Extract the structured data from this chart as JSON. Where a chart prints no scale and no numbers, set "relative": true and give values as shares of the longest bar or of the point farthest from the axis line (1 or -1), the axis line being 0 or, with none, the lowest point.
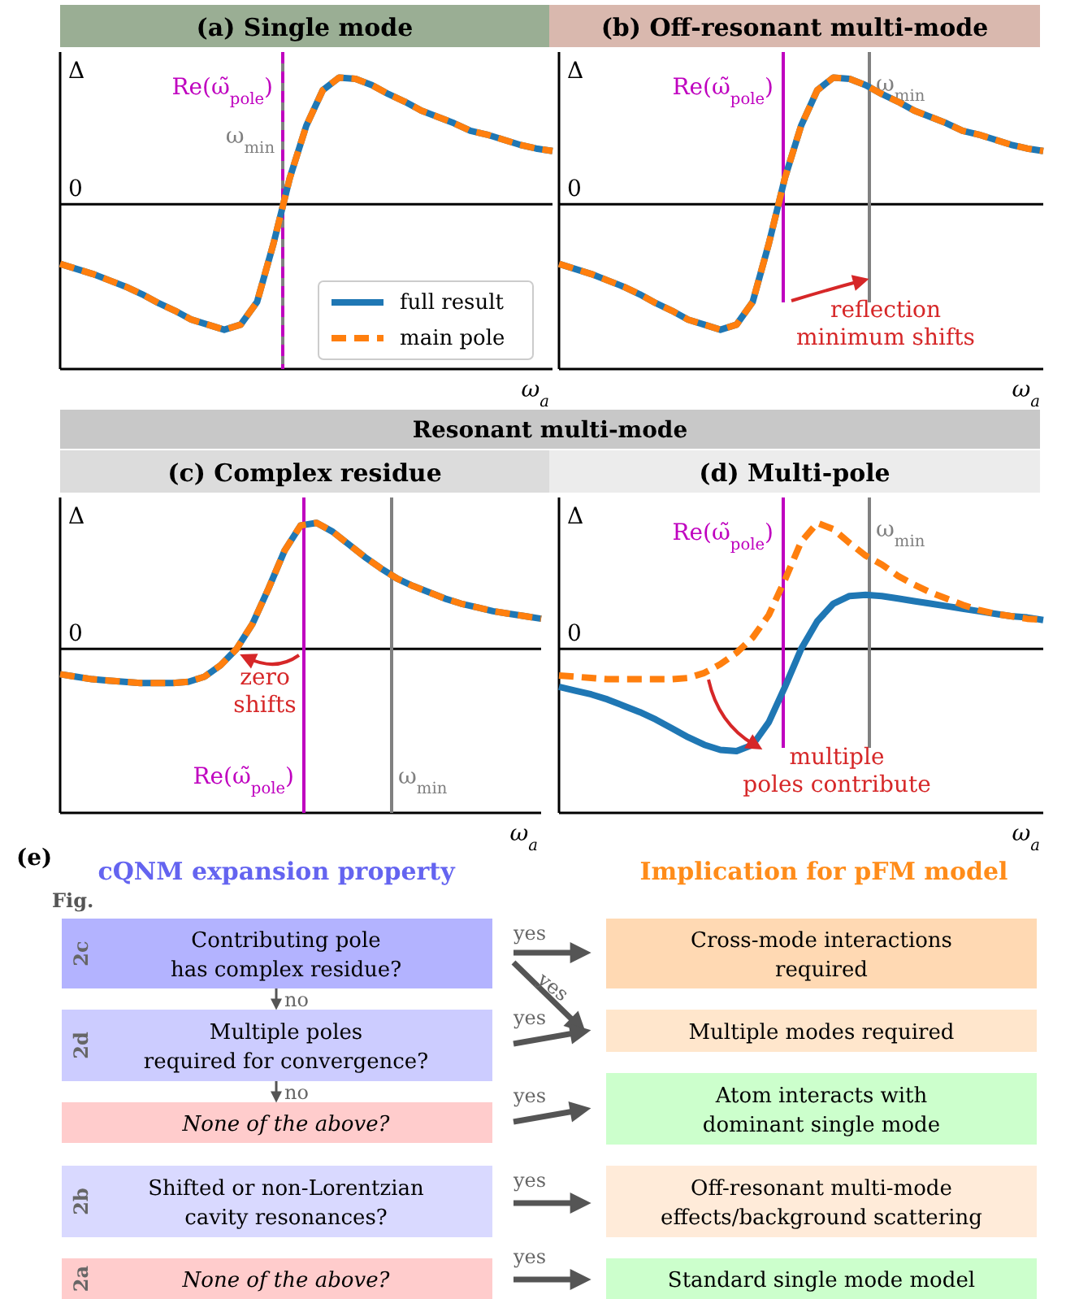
{
  "chart_data": [
    {
      "type": "line",
      "relative": true,
      "title": "(a) Single mode",
      "ylabel": "Δ",
      "xlabel": "ω$_{a}$",
      "legend": "bottom right",
      "categories": [
        null,
        null,
        null,
        null,
        null,
        null,
        null,
        null,
        null,
        null,
        null,
        null,
        null,
        null,
        null,
        null,
        null,
        null,
        null,
        null,
        null,
        null,
        null,
        null,
        null,
        null,
        null,
        null,
        null,
        null,
        null
      ],
      "series": [
        {
          "name": "full result",
          "color": "#1f77b4",
          "line_style": "solid",
          "values": [
            -0.47,
            -0.51,
            -0.55,
            -0.6,
            -0.65,
            -0.71,
            -0.78,
            -0.84,
            -0.91,
            -0.95,
            -0.99,
            -0.95,
            -0.77,
            -0.31,
            0.21,
            0.62,
            0.9,
            1.0,
            0.99,
            0.94,
            0.87,
            0.81,
            0.74,
            0.69,
            0.64,
            0.58,
            0.55,
            0.51,
            0.47,
            0.44,
            0.42
          ]
        },
        {
          "name": "main pole",
          "color": "#ff7f0e",
          "line_style": "dashed",
          "values": [
            -0.47,
            -0.51,
            -0.55,
            -0.6,
            -0.65,
            -0.71,
            -0.78,
            -0.84,
            -0.91,
            -0.95,
            -0.99,
            -0.95,
            -0.77,
            -0.31,
            0.21,
            0.62,
            0.9,
            1.0,
            0.99,
            0.94,
            0.87,
            0.81,
            0.74,
            0.69,
            0.64,
            0.58,
            0.55,
            0.51,
            0.47,
            0.44,
            0.42
          ]
        }
      ],
      "ref_lines": [
        {
          "axis": "x",
          "label": "ω$_{min}$",
          "color": "#808080",
          "line_style": "solid"
        },
        {
          "axis": "x",
          "label": "Re(ω̃$_{pole}$)",
          "color": "#bf00bf",
          "line_style": "dashed"
        }
      ],
      "annotations": [
        "0"
      ]
    },
    {
      "type": "line",
      "relative": true,
      "title": "(b) Off-resonant multi-mode",
      "ylabel": "Δ",
      "xlabel": "ω$_{a}$",
      "categories": [
        null,
        null,
        null,
        null,
        null,
        null,
        null,
        null,
        null,
        null,
        null,
        null,
        null,
        null,
        null,
        null,
        null,
        null,
        null,
        null,
        null,
        null,
        null,
        null,
        null,
        null,
        null,
        null,
        null,
        null,
        null
      ],
      "series": [
        {
          "color": "#1f77b4",
          "line_style": "solid",
          "values": [
            -0.47,
            -0.51,
            -0.55,
            -0.6,
            -0.65,
            -0.71,
            -0.78,
            -0.84,
            -0.91,
            -0.95,
            -0.99,
            -0.95,
            -0.77,
            -0.31,
            0.21,
            0.62,
            0.9,
            1.0,
            0.99,
            0.94,
            0.87,
            0.81,
            0.74,
            0.69,
            0.64,
            0.58,
            0.55,
            0.51,
            0.47,
            0.44,
            0.42
          ]
        },
        {
          "color": "#ff7f0e",
          "line_style": "dashed",
          "values": [
            -0.47,
            -0.51,
            -0.55,
            -0.6,
            -0.65,
            -0.71,
            -0.78,
            -0.84,
            -0.91,
            -0.95,
            -0.99,
            -0.95,
            -0.77,
            -0.31,
            0.21,
            0.62,
            0.9,
            1.0,
            0.99,
            0.94,
            0.87,
            0.81,
            0.74,
            0.69,
            0.64,
            0.58,
            0.55,
            0.51,
            0.47,
            0.44,
            0.42
          ]
        }
      ],
      "ref_lines": [
        {
          "axis": "x",
          "label": "ω$_{min}$",
          "color": "#808080",
          "line_style": "solid"
        },
        {
          "axis": "x",
          "label": "Re(ω̃$_{pole}$)",
          "color": "#bf00bf",
          "line_style": "solid"
        }
      ],
      "annotations": [
        "0",
        "reflection\nminimum shifts"
      ]
    },
    {
      "type": "line",
      "relative": true,
      "title": "(c) Complex residue",
      "subtitle": "Resonant multi-mode",
      "ylabel": "Δ",
      "xlabel": "ω$_{a}$",
      "categories": [
        null,
        null,
        null,
        null,
        null,
        null,
        null,
        null,
        null,
        null,
        null,
        null,
        null,
        null,
        null,
        null,
        null,
        null,
        null,
        null,
        null,
        null,
        null,
        null,
        null,
        null,
        null,
        null,
        null,
        null,
        null
      ],
      "series": [
        {
          "color": "#1f77b4",
          "line_style": "solid",
          "values": [
            -0.2,
            -0.22,
            -0.24,
            -0.25,
            -0.26,
            -0.27,
            -0.27,
            -0.27,
            -0.26,
            -0.22,
            -0.13,
            0.0,
            0.2,
            0.48,
            0.78,
            0.98,
            1.0,
            0.93,
            0.83,
            0.73,
            0.64,
            0.56,
            0.5,
            0.45,
            0.4,
            0.36,
            0.33,
            0.3,
            0.28,
            0.26,
            0.24
          ]
        },
        {
          "color": "#ff7f0e",
          "line_style": "dashed",
          "values": [
            -0.2,
            -0.22,
            -0.24,
            -0.25,
            -0.26,
            -0.27,
            -0.27,
            -0.27,
            -0.26,
            -0.22,
            -0.13,
            0.0,
            0.2,
            0.48,
            0.78,
            0.98,
            1.0,
            0.93,
            0.83,
            0.73,
            0.64,
            0.56,
            0.5,
            0.45,
            0.4,
            0.36,
            0.33,
            0.3,
            0.28,
            0.26,
            0.24
          ]
        }
      ],
      "ref_lines": [
        {
          "axis": "x",
          "label": "ω$_{min}$",
          "color": "#808080",
          "line_style": "solid"
        },
        {
          "axis": "x",
          "label": "Re(ω̃$_{pole}$)",
          "color": "#bf00bf",
          "line_style": "solid"
        }
      ],
      "annotations": [
        "0",
        "zero\nshifts"
      ]
    },
    {
      "type": "line",
      "relative": true,
      "title": "(d) Multi-pole",
      "ylabel": "Δ",
      "xlabel": "ω$_{a}$",
      "categories": [
        null,
        null,
        null,
        null,
        null,
        null,
        null,
        null,
        null,
        null,
        null,
        null,
        null,
        null,
        null,
        null,
        null,
        null,
        null,
        null,
        null,
        null,
        null,
        null,
        null,
        null,
        null,
        null,
        null,
        null,
        null
      ],
      "series": [
        {
          "color": "#1f77b4",
          "line_style": "solid",
          "values": [
            -0.3,
            -0.33,
            -0.36,
            -0.4,
            -0.45,
            -0.5,
            -0.56,
            -0.63,
            -0.7,
            -0.76,
            -0.8,
            -0.81,
            -0.76,
            -0.58,
            -0.3,
            0.0,
            0.22,
            0.36,
            0.42,
            0.43,
            0.42,
            0.4,
            0.38,
            0.36,
            0.34,
            0.32,
            0.3,
            0.28,
            0.26,
            0.25,
            0.23
          ]
        },
        {
          "color": "#ff7f0e",
          "line_style": "dashed",
          "values": [
            -0.21,
            -0.22,
            -0.23,
            -0.24,
            -0.24,
            -0.24,
            -0.24,
            -0.24,
            -0.23,
            -0.19,
            -0.12,
            -0.03,
            0.09,
            0.27,
            0.55,
            0.85,
            1.0,
            0.95,
            0.84,
            0.74,
            0.67,
            0.58,
            0.51,
            0.45,
            0.4,
            0.35,
            0.31,
            0.28,
            0.26,
            0.24,
            0.23
          ]
        }
      ],
      "ref_lines": [
        {
          "axis": "x",
          "label": "ω$_{min}$",
          "color": "#808080",
          "line_style": "solid"
        },
        {
          "axis": "x",
          "label": "Re(ω̃$_{pole}$)",
          "color": "#bf00bf",
          "line_style": "solid"
        }
      ],
      "annotations": [
        "0",
        "multiple\npoles contribute"
      ]
    },
    {
      "type": "other",
      "title": "(e)",
      "annotations": [
        "cQNM expansion property",
        "Implication for pFM model",
        "Fig.",
        "2c",
        "Contributing pole\nhas complex residue?",
        "2d",
        "Multiple poles\nrequired for convergence?",
        "None of the above?",
        "2b",
        "Shifted or non-Lorentzian\ncavity resonances?",
        "2a",
        "None of the above?",
        "Cross-mode interactions\nrequired",
        "Multiple modes required",
        "Atom interacts with\ndominant single mode",
        "Off-resonant multi-mode\neffects/background scattering",
        "Standard single mode model",
        "yes",
        "yes",
        "yes",
        "yes",
        "yes",
        "yes",
        "no",
        "no"
      ]
    }
  ]
}
